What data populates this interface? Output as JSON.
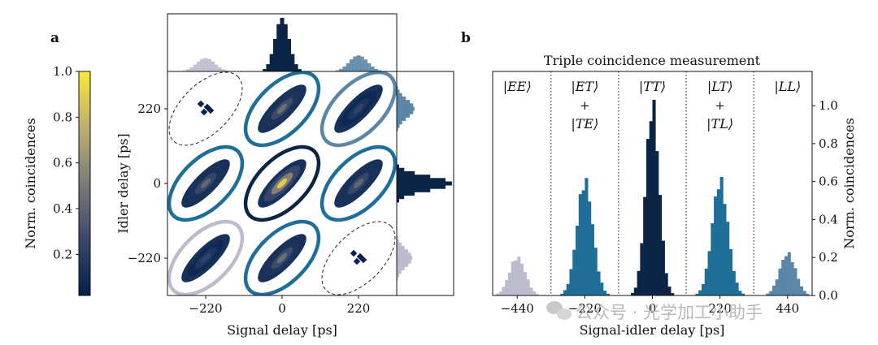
{
  "panel_labels": {
    "a": "a",
    "b": "b"
  },
  "watermark": "公众号 · 光学加工小助手",
  "colors": {
    "tt": "#0b2547",
    "et": "#1f6e98",
    "lt": "#1f6e98",
    "ee": "#bdbccd",
    "ll": "#5b86a8",
    "cmap_low": "#00204c",
    "cmap_mid": "#7c7b78",
    "cmap_high": "#fde737"
  },
  "chart_data": [
    {
      "id": "colorbar",
      "type": "colorbar",
      "label": "Norm. coincidences",
      "range": [
        0.02,
        1.0
      ],
      "ticks": [
        0.2,
        0.4,
        0.6,
        0.8,
        1.0
      ],
      "tick_labels": [
        "0.2",
        "0.4",
        "0.6",
        "0.8",
        "1.0"
      ]
    },
    {
      "id": "heatmap",
      "type": "heatmap",
      "xlabel": "Signal delay [ps]",
      "ylabel": "Idler delay [ps]",
      "xlim": [
        -330,
        330
      ],
      "ylim": [
        -330,
        330
      ],
      "xticks": [
        -220,
        0,
        220
      ],
      "yticks": [
        -220,
        0,
        220
      ],
      "xtick_labels": [
        "−220",
        "0",
        "220"
      ],
      "ytick_labels": [
        "−220",
        "0",
        "220"
      ],
      "clusters": [
        {
          "signal": -220,
          "idler": 220,
          "peak": 0.0,
          "ring": "dashed",
          "ring_color": "#222222"
        },
        {
          "signal": 0,
          "idler": 220,
          "peak": 0.5,
          "ring": "solid",
          "ring_color": "#1f6e98"
        },
        {
          "signal": 220,
          "idler": 220,
          "peak": 0.25,
          "ring": "solid",
          "ring_color": "#5b86a8"
        },
        {
          "signal": -220,
          "idler": 0,
          "peak": 0.45,
          "ring": "solid",
          "ring_color": "#1f6e98"
        },
        {
          "signal": 0,
          "idler": 0,
          "peak": 1.0,
          "ring": "solid",
          "ring_color": "#0b2547"
        },
        {
          "signal": 220,
          "idler": 0,
          "peak": 0.45,
          "ring": "solid",
          "ring_color": "#1f6e98"
        },
        {
          "signal": -220,
          "idler": -220,
          "peak": 0.25,
          "ring": "solid",
          "ring_color": "#bdbccd"
        },
        {
          "signal": 0,
          "idler": -220,
          "peak": 0.5,
          "ring": "solid",
          "ring_color": "#1f6e98"
        },
        {
          "signal": 220,
          "idler": -220,
          "peak": 0.0,
          "ring": "dashed",
          "ring_color": "#222222"
        }
      ],
      "marginal_signal": [
        {
          "center": -220,
          "peak": 0.25,
          "color": "#bdbccd"
        },
        {
          "center": 0,
          "peak": 1.0,
          "color": "#0b2547"
        },
        {
          "center": 220,
          "peak": 0.3,
          "color": "#5b86a8"
        }
      ],
      "marginal_idler": [
        {
          "center": 220,
          "peak": 0.32,
          "color": "#5b86a8"
        },
        {
          "center": 0,
          "peak": 1.0,
          "color": "#0b2547"
        },
        {
          "center": -220,
          "peak": 0.28,
          "color": "#bdbccd"
        }
      ]
    },
    {
      "id": "histogram",
      "type": "bar",
      "title": "Triple coincidence measurement",
      "xlabel": "Signal-idler delay [ps]",
      "ylabel": "Norm. coincidences",
      "xlim": [
        -520,
        520
      ],
      "ylim": [
        0,
        1.18
      ],
      "xticks": [
        -440,
        -220,
        0,
        220,
        440
      ],
      "xtick_labels": [
        "−440",
        "−220",
        "0",
        "220",
        "440"
      ],
      "yticks": [
        0.0,
        0.2,
        0.4,
        0.6,
        0.8,
        1.0
      ],
      "ytick_labels": [
        "0.0",
        "0.2",
        "0.4",
        "0.6",
        "0.8",
        "1.0"
      ],
      "dividers": [
        -330,
        -110,
        110,
        330
      ],
      "groups": [
        {
          "name": "EE",
          "center": -440,
          "peak": 0.2,
          "color": "#bdbccd",
          "label": [
            "|EE⟩"
          ]
        },
        {
          "name": "ET",
          "center": -220,
          "peak": 0.6,
          "color": "#1f6e98",
          "label": [
            "|ET⟩",
            "+",
            "|TE⟩"
          ]
        },
        {
          "name": "TT",
          "center": 0,
          "peak": 1.0,
          "color": "#0b2547",
          "label": [
            "|TT⟩"
          ]
        },
        {
          "name": "LT",
          "center": 220,
          "peak": 0.6,
          "color": "#1f6e98",
          "label": [
            "|LT⟩",
            "+",
            "|TL⟩"
          ]
        },
        {
          "name": "LL",
          "center": 440,
          "peak": 0.22,
          "color": "#5b86a8",
          "label": [
            "|LL⟩"
          ]
        }
      ]
    }
  ]
}
